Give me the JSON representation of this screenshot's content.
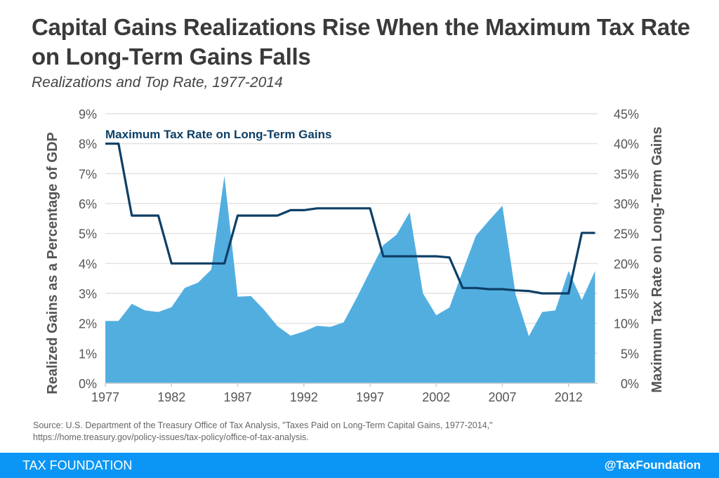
{
  "header": {
    "title": "Capital Gains Realizations Rise When the Maximum Tax Rate on Long-Term Gains Falls",
    "subtitle": "Realizations and Top Rate, 1977-2014"
  },
  "chart_data": {
    "type": "area",
    "title": "Capital Gains Realizations Rise When the Maximum Tax Rate on Long-Term Gains Falls",
    "subtitle": "Realizations and Top Rate, 1977-2014",
    "x": [
      1977,
      1978,
      1979,
      1980,
      1981,
      1982,
      1983,
      1984,
      1985,
      1986,
      1987,
      1988,
      1989,
      1990,
      1991,
      1992,
      1993,
      1994,
      1995,
      1996,
      1997,
      1998,
      1999,
      2000,
      2001,
      2002,
      2003,
      2004,
      2005,
      2006,
      2007,
      2008,
      2009,
      2010,
      2011,
      2012,
      2013,
      2014
    ],
    "x_ticks": [
      "1977",
      "1982",
      "1987",
      "1992",
      "1997",
      "2002",
      "2007",
      "2012"
    ],
    "xlim": [
      1977,
      2014
    ],
    "ylabel": "Realized Gains as a Percentage of GDP",
    "ylim": [
      0,
      9
    ],
    "y_ticks": [
      "0%",
      "1%",
      "2%",
      "3%",
      "4%",
      "5%",
      "6%",
      "7%",
      "8%",
      "9%"
    ],
    "y2label": "Maximum Tax Rate on Long-Term Gains",
    "y2lim": [
      0,
      45
    ],
    "y2_ticks": [
      "0%",
      "5%",
      "10%",
      "15%",
      "20%",
      "25%",
      "30%",
      "35%",
      "40%",
      "45%"
    ],
    "grid": true,
    "series": [
      {
        "type": "area",
        "axis": "left",
        "color": "#53aee0",
        "values": [
          2.08,
          2.08,
          2.65,
          2.43,
          2.38,
          2.54,
          3.18,
          3.36,
          3.79,
          6.92,
          2.89,
          2.91,
          2.45,
          1.91,
          1.59,
          1.73,
          1.92,
          1.88,
          2.03,
          2.86,
          3.74,
          4.61,
          4.96,
          5.71,
          3.0,
          2.27,
          2.53,
          3.75,
          4.93,
          5.44,
          5.93,
          2.96,
          1.57,
          2.38,
          2.43,
          3.75,
          2.78,
          3.75
        ]
      },
      {
        "type": "line",
        "axis": "right",
        "name": "Maximum Tax Rate on Long-Term Gains",
        "color": "#0d3f66",
        "values": [
          40,
          40,
          28,
          28,
          28,
          20,
          20,
          20,
          20,
          20,
          28,
          28,
          28,
          28,
          28.9,
          28.9,
          29.2,
          29.2,
          29.2,
          29.2,
          29.2,
          21.2,
          21.2,
          21.2,
          21.2,
          21.2,
          21.0,
          15.9,
          15.9,
          15.7,
          15.7,
          15.5,
          15.4,
          15.0,
          15.0,
          15.0,
          25.1,
          25.1
        ]
      }
    ],
    "legend": {
      "text": "Maximum Tax Rate on Long-Term Gains",
      "placement": "top-left"
    }
  },
  "source": {
    "line1": "Source: U.S. Department of the Treasury Office of Tax Analysis, \"Taxes Paid on Long-Term Capital Gains, 1977-2014,\"",
    "line2": "https://home.treasury.gov/policy-issues/tax-policy/office-of-tax-analysis."
  },
  "footer": {
    "brand": "TAX FOUNDATION",
    "handle": "@TaxFoundation",
    "color": "#0b96f5"
  }
}
